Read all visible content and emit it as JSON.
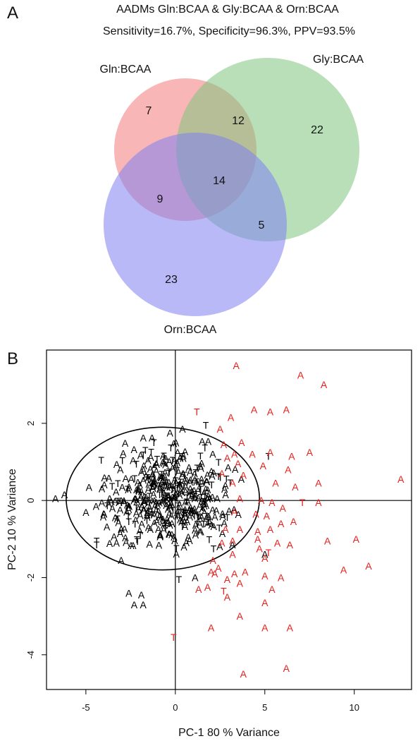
{
  "chart_data": [
    {
      "type": "venn",
      "panel_label": "A",
      "title": "AADMs Gln:BCAA & Gly:BCAA & Orn:BCAA",
      "subtitle": "Sensitivity=16.7%, Specificity=96.3%, PPV=93.5%",
      "sets": [
        {
          "name": "Gln:BCAA",
          "color": "#f47a7a"
        },
        {
          "name": "Gly:BCAA",
          "color": "#7fc47f"
        },
        {
          "name": "Orn:BCAA",
          "color": "#7f7ff2"
        }
      ],
      "regions": [
        {
          "sets": [
            "Gln:BCAA"
          ],
          "count": "7"
        },
        {
          "sets": [
            "Gln:BCAA",
            "Gly:BCAA"
          ],
          "count": "12"
        },
        {
          "sets": [
            "Gly:BCAA"
          ],
          "count": "22"
        },
        {
          "sets": [
            "Gln:BCAA",
            "Gly:BCAA",
            "Orn:BCAA"
          ],
          "count": "14"
        },
        {
          "sets": [
            "Gln:BCAA",
            "Orn:BCAA"
          ],
          "count": "9"
        },
        {
          "sets": [
            "Gly:BCAA",
            "Orn:BCAA"
          ],
          "count": "5"
        },
        {
          "sets": [
            "Orn:BCAA"
          ],
          "count": "23"
        }
      ]
    },
    {
      "type": "scatter",
      "panel_label": "B",
      "xlabel": "PC-1 80 % Variance",
      "ylabel": "PC-2 10 % Variance",
      "xlim": [
        -7.2,
        13.2
      ],
      "ylim": [
        -4.9,
        3.9
      ],
      "xticks": [
        -5,
        0,
        5,
        10
      ],
      "yticks": [
        -4,
        -2,
        0,
        2
      ],
      "reference_lines": {
        "x": 0,
        "y": 0
      },
      "ellipse": {
        "cx": -0.7,
        "cy": 0.05,
        "rx": 5.4,
        "ry": 1.85,
        "color": "#000000"
      },
      "marker_colors": {
        "black": "#000000",
        "red": "#e8201c"
      },
      "red_points": [
        {
          "x": 3.4,
          "y": 3.5,
          "label": "A"
        },
        {
          "x": 7.0,
          "y": 3.25,
          "label": "A"
        },
        {
          "x": 8.3,
          "y": 3.0,
          "label": "A"
        },
        {
          "x": 1.2,
          "y": 2.3,
          "label": "T"
        },
        {
          "x": 4.4,
          "y": 2.35,
          "label": "A"
        },
        {
          "x": 5.3,
          "y": 2.3,
          "label": "A"
        },
        {
          "x": 6.2,
          "y": 2.35,
          "label": "A"
        },
        {
          "x": 3.1,
          "y": 2.15,
          "label": "A"
        },
        {
          "x": 2.5,
          "y": 1.85,
          "label": "A"
        },
        {
          "x": 2.7,
          "y": 1.45,
          "label": "A"
        },
        {
          "x": 3.7,
          "y": 1.5,
          "label": "A"
        },
        {
          "x": 2.9,
          "y": 1.1,
          "label": "A"
        },
        {
          "x": 3.3,
          "y": 1.2,
          "label": "A"
        },
        {
          "x": 3.5,
          "y": 0.95,
          "label": "A"
        },
        {
          "x": 4.3,
          "y": 1.2,
          "label": "A"
        },
        {
          "x": 5.3,
          "y": 1.25,
          "label": "A"
        },
        {
          "x": 6.5,
          "y": 1.15,
          "label": "A"
        },
        {
          "x": 7.5,
          "y": 1.25,
          "label": "A"
        },
        {
          "x": 4.9,
          "y": 0.9,
          "label": "A"
        },
        {
          "x": 6.3,
          "y": 0.8,
          "label": "A"
        },
        {
          "x": 2.6,
          "y": 0.7,
          "label": "A"
        },
        {
          "x": 3.8,
          "y": 0.65,
          "label": "A"
        },
        {
          "x": 3.2,
          "y": 0.45,
          "label": "A"
        },
        {
          "x": 5.6,
          "y": 0.45,
          "label": "A"
        },
        {
          "x": 6.7,
          "y": 0.35,
          "label": "A"
        },
        {
          "x": 8.0,
          "y": 0.45,
          "label": "A"
        },
        {
          "x": 12.6,
          "y": 0.55,
          "label": "A"
        },
        {
          "x": 3.6,
          "y": 0.05,
          "label": "A"
        },
        {
          "x": 4.8,
          "y": 0.0,
          "label": "A"
        },
        {
          "x": 5.4,
          "y": -0.05,
          "label": "A"
        },
        {
          "x": 6.0,
          "y": -0.2,
          "label": "A"
        },
        {
          "x": 7.1,
          "y": -0.05,
          "label": "T"
        },
        {
          "x": 8.0,
          "y": -0.05,
          "label": "A"
        },
        {
          "x": 3.3,
          "y": -0.3,
          "label": "A"
        },
        {
          "x": 4.5,
          "y": -0.35,
          "label": "A"
        },
        {
          "x": 5.1,
          "y": -0.4,
          "label": "A"
        },
        {
          "x": 5.9,
          "y": -0.6,
          "label": "A"
        },
        {
          "x": 6.6,
          "y": -0.55,
          "label": "A"
        },
        {
          "x": 2.8,
          "y": -0.75,
          "label": "A"
        },
        {
          "x": 3.6,
          "y": -0.75,
          "label": "A"
        },
        {
          "x": 4.6,
          "y": -0.8,
          "label": "A"
        },
        {
          "x": 5.3,
          "y": -0.75,
          "label": "A"
        },
        {
          "x": 2.6,
          "y": -1.1,
          "label": "A"
        },
        {
          "x": 3.2,
          "y": -1.05,
          "label": "A"
        },
        {
          "x": 4.6,
          "y": -1.0,
          "label": "A"
        },
        {
          "x": 4.7,
          "y": -1.25,
          "label": "A"
        },
        {
          "x": 5.7,
          "y": -1.1,
          "label": "A"
        },
        {
          "x": 6.4,
          "y": -1.15,
          "label": "A"
        },
        {
          "x": 8.5,
          "y": -1.05,
          "label": "A"
        },
        {
          "x": 10.1,
          "y": -1.0,
          "label": "A"
        },
        {
          "x": 3.2,
          "y": -1.4,
          "label": "A"
        },
        {
          "x": 5.2,
          "y": -1.35,
          "label": "T"
        },
        {
          "x": 5.0,
          "y": -1.5,
          "label": "A"
        },
        {
          "x": 2.1,
          "y": -1.55,
          "label": "A"
        },
        {
          "x": 2.4,
          "y": -1.75,
          "label": "A"
        },
        {
          "x": 3.3,
          "y": -1.9,
          "label": "A"
        },
        {
          "x": 9.4,
          "y": -1.8,
          "label": "A"
        },
        {
          "x": 10.8,
          "y": -1.7,
          "label": "A"
        },
        {
          "x": 2.0,
          "y": -1.85,
          "label": "A"
        },
        {
          "x": 2.2,
          "y": -1.9,
          "label": "A"
        },
        {
          "x": 3.9,
          "y": -1.85,
          "label": "A"
        },
        {
          "x": 5.0,
          "y": -1.95,
          "label": "A"
        },
        {
          "x": 5.9,
          "y": -2.0,
          "label": "A"
        },
        {
          "x": 2.9,
          "y": -2.05,
          "label": "A"
        },
        {
          "x": 3.6,
          "y": -2.15,
          "label": "A"
        },
        {
          "x": 1.3,
          "y": -2.3,
          "label": "A"
        },
        {
          "x": 1.8,
          "y": -2.25,
          "label": "A"
        },
        {
          "x": 2.7,
          "y": -2.35,
          "label": "T"
        },
        {
          "x": 5.4,
          "y": -2.3,
          "label": "A"
        },
        {
          "x": 2.9,
          "y": -2.5,
          "label": "A"
        },
        {
          "x": 5.0,
          "y": -2.65,
          "label": "A"
        },
        {
          "x": 3.6,
          "y": -3.0,
          "label": "A"
        },
        {
          "x": 2.0,
          "y": -3.3,
          "label": "A"
        },
        {
          "x": 5.0,
          "y": -3.3,
          "label": "A"
        },
        {
          "x": 6.4,
          "y": -3.3,
          "label": "A"
        },
        {
          "x": -0.1,
          "y": -3.55,
          "label": "T"
        },
        {
          "x": 3.8,
          "y": -4.5,
          "label": "A"
        },
        {
          "x": 6.2,
          "y": -4.35,
          "label": "A"
        }
      ],
      "black_extra_points": [
        {
          "x": 1.7,
          "y": 1.95,
          "label": "T"
        },
        {
          "x": 5.2,
          "y": 1.15,
          "label": "T"
        },
        {
          "x": -6.7,
          "y": 0.05,
          "label": "A"
        },
        {
          "x": -6.2,
          "y": 0.15,
          "label": "A"
        },
        {
          "x": -2.6,
          "y": -2.4,
          "label": "A"
        },
        {
          "x": -1.9,
          "y": -2.45,
          "label": "A"
        },
        {
          "x": -2.3,
          "y": -2.7,
          "label": "A"
        },
        {
          "x": -1.8,
          "y": -2.7,
          "label": "A"
        },
        {
          "x": -4.4,
          "y": -1.05,
          "label": "T"
        },
        {
          "x": -4.4,
          "y": -1.15,
          "label": "T"
        },
        {
          "x": 5.0,
          "y": -1.4,
          "label": "A"
        },
        {
          "x": 1.1,
          "y": -2.0,
          "label": "A"
        },
        {
          "x": 0.2,
          "y": -2.05,
          "label": "T"
        },
        {
          "x": -0.3,
          "y": 1.75,
          "label": "A"
        },
        {
          "x": 0.4,
          "y": 1.85,
          "label": "A"
        },
        {
          "x": -1.2,
          "y": 1.5,
          "label": "T"
        }
      ],
      "black_cluster": {
        "count": 430,
        "seed": 7,
        "label_A_share": 0.82
      }
    }
  ]
}
